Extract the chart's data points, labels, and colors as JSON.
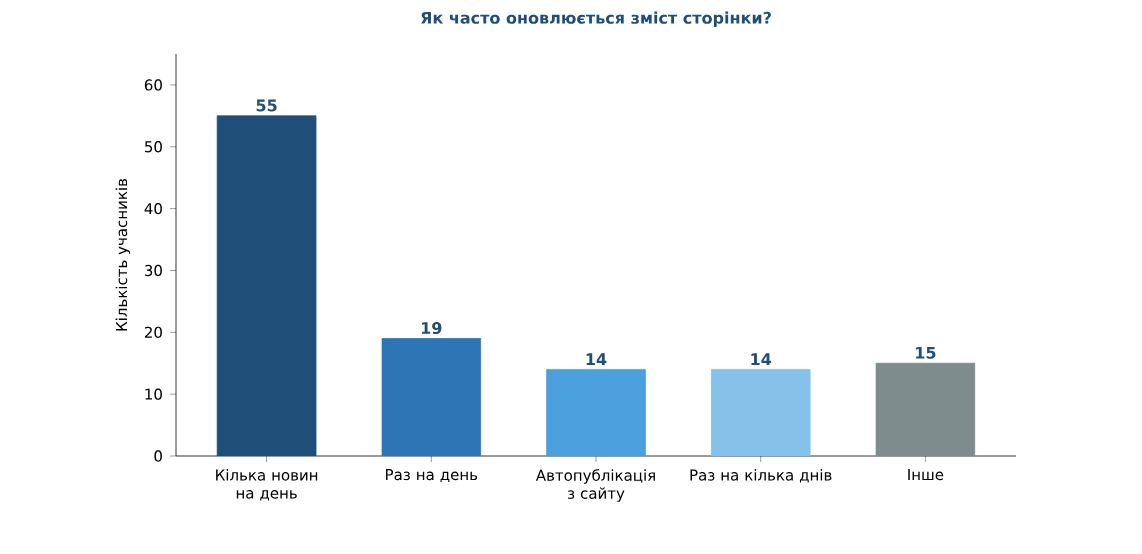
{
  "chart_data": {
    "type": "bar",
    "title": "Як часто оновлюється зміст сторінки?",
    "ylabel": "Кількість учасників",
    "categories": [
      "Кілька новин на день",
      "Раз на день",
      "Автопублікація з сайту",
      "Раз на кілька днів",
      "Інше"
    ],
    "values": [
      55,
      19,
      14,
      14,
      15
    ],
    "colors": [
      "#1f4e79",
      "#2e75b6",
      "#4a9fdc",
      "#85c1e9",
      "#7f8c8d"
    ],
    "ylim": [
      0,
      65
    ],
    "yticks": [
      0,
      10,
      20,
      30,
      40,
      50,
      60
    ],
    "data_labels": true
  }
}
